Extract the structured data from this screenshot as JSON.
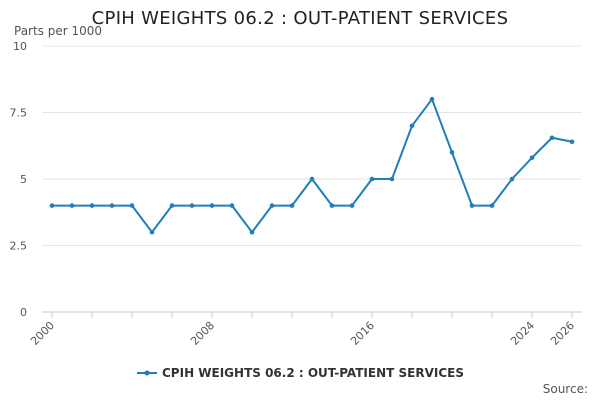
{
  "title": "CPIH WEIGHTS 06.2 : OUT-PATIENT SERVICES",
  "y_axis_title": "Parts per 1000",
  "legend_label": "CPIH WEIGHTS 06.2 : OUT-PATIENT SERVICES",
  "source_label": "Source:",
  "colors": {
    "series": "#1f7fb6",
    "grid": "#e6e6e6",
    "axis": "#c8c8c8"
  },
  "chart_data": {
    "type": "line",
    "title": "CPIH WEIGHTS 06.2 : OUT-PATIENT SERVICES",
    "ylabel": "Parts per 1000",
    "xlabel": "",
    "x": [
      2000,
      2001,
      2002,
      2003,
      2004,
      2005,
      2006,
      2007,
      2008,
      2009,
      2010,
      2011,
      2012,
      2013,
      2014,
      2015,
      2016,
      2017,
      2018,
      2019,
      2020,
      2021,
      2022,
      2023,
      2024,
      2025,
      2026
    ],
    "series": [
      {
        "name": "CPIH WEIGHTS 06.2 : OUT-PATIENT SERVICES",
        "values": [
          4,
          4,
          4,
          4,
          4,
          3,
          4,
          4,
          4,
          4,
          3,
          4,
          4,
          5,
          4,
          4,
          5,
          5,
          7,
          8,
          6,
          4,
          4,
          5,
          5.8,
          6.55,
          6.4
        ]
      }
    ],
    "xlim": [
      2000,
      2026
    ],
    "ylim": [
      0,
      10
    ],
    "y_ticks": [
      0,
      2.5,
      5,
      7.5,
      10
    ],
    "y_tick_labels": [
      "0",
      "2.5",
      "5",
      "7.5",
      "10"
    ],
    "x_tick_labels": [
      "2000",
      "2008",
      "2016",
      "2024",
      "2026"
    ],
    "grid": true,
    "legend": "bottom"
  }
}
